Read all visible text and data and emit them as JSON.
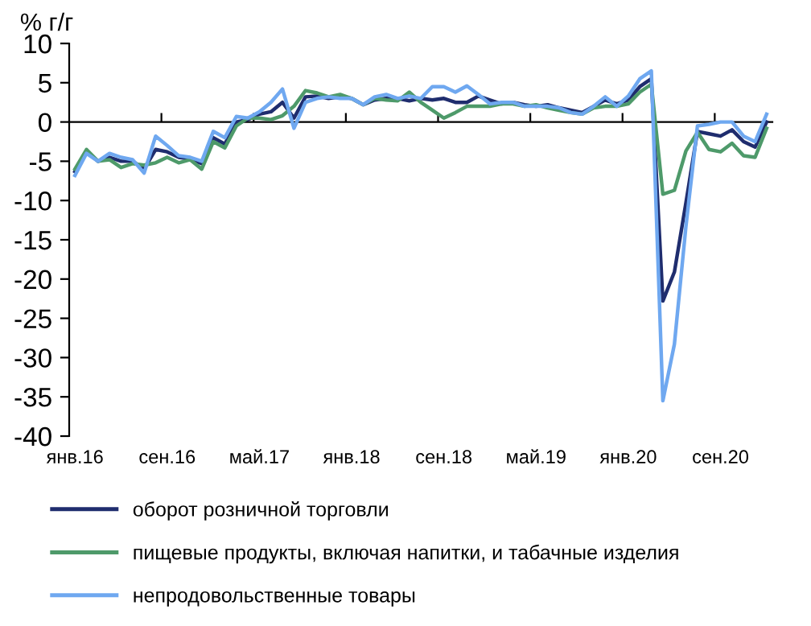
{
  "chart_data": {
    "type": "line",
    "ylabel": "% г/г",
    "categories": [
      "янв.16",
      null,
      null,
      null,
      null,
      null,
      null,
      null,
      "сен.16",
      null,
      null,
      null,
      null,
      null,
      null,
      null,
      "май.17",
      null,
      null,
      null,
      null,
      null,
      null,
      null,
      "янв.18",
      null,
      null,
      null,
      null,
      null,
      null,
      null,
      "сен.18",
      null,
      null,
      null,
      null,
      null,
      null,
      null,
      "май.19",
      null,
      null,
      null,
      null,
      null,
      null,
      null,
      "янв.20",
      null,
      null,
      null,
      null,
      null,
      null,
      null,
      "сен.20",
      null,
      null,
      null,
      null
    ],
    "series": [
      {
        "name": "оборот розничной торговли",
        "color": "#1f2d6e",
        "values": [
          -6.3,
          -3.8,
          -5.0,
          -4.5,
          -5.0,
          -5.0,
          -6.0,
          -3.5,
          -3.8,
          -4.5,
          -4.7,
          -5.3,
          -2.0,
          -2.8,
          0,
          0.3,
          1.0,
          1.3,
          2.5,
          0.5,
          3.2,
          3.3,
          3.0,
          3.2,
          3.0,
          2.2,
          2.8,
          3.0,
          3.0,
          2.7,
          3.0,
          2.8,
          3.0,
          2.5,
          2.5,
          3.3,
          2.8,
          2.3,
          2.5,
          2.2,
          2.0,
          2.2,
          1.8,
          1.5,
          1.2,
          2.0,
          2.8,
          2.3,
          2.8,
          4.5,
          5.5,
          -22.8,
          -19.1,
          -10.3,
          -1.2,
          -1.5,
          -1.8,
          -1.0,
          -2.5,
          -3.2,
          0
        ]
      },
      {
        "name": "пищевые продукты, включая напитки, и табачные изделия",
        "color": "#4e9a6a",
        "values": [
          -6.0,
          -3.5,
          -5.0,
          -4.8,
          -5.8,
          -5.3,
          -5.5,
          -5.2,
          -4.5,
          -5.2,
          -4.8,
          -6.0,
          -2.5,
          -3.3,
          -0.5,
          0.5,
          0.5,
          0.3,
          0.8,
          2.0,
          4.0,
          3.7,
          3.2,
          3.5,
          3.0,
          2.2,
          3.0,
          2.8,
          2.7,
          3.8,
          2.5,
          1.5,
          0.5,
          1.2,
          2.0,
          2.0,
          2.0,
          2.3,
          2.3,
          2.0,
          2.2,
          1.8,
          1.5,
          1.2,
          1.0,
          1.8,
          2.0,
          2.0,
          2.3,
          3.8,
          4.8,
          -9.2,
          -8.7,
          -3.7,
          -1.3,
          -3.5,
          -3.8,
          -2.7,
          -4.3,
          -4.5,
          -0.8
        ]
      },
      {
        "name": "непродовольственные товары",
        "color": "#6fa8f0",
        "values": [
          -6.8,
          -4.0,
          -5.0,
          -4.0,
          -4.5,
          -4.8,
          -6.5,
          -1.8,
          -3.0,
          -4.3,
          -4.5,
          -5.0,
          -1.2,
          -2.0,
          0.7,
          0.5,
          1.3,
          2.5,
          4.2,
          -0.8,
          2.5,
          3.0,
          3.2,
          3.0,
          3.0,
          2.2,
          3.2,
          3.5,
          3.0,
          3.3,
          3.0,
          4.5,
          4.5,
          3.8,
          4.6,
          3.5,
          2.3,
          2.5,
          2.5,
          2.0,
          2.0,
          2.0,
          1.8,
          1.2,
          1.0,
          2.0,
          3.2,
          2.0,
          3.3,
          5.5,
          6.5,
          -35.5,
          -28.3,
          -13.3,
          -0.5,
          -0.3,
          0,
          0,
          -1.8,
          -2.5,
          1.0
        ]
      }
    ],
    "ylim": [
      -40,
      10
    ],
    "yticks": [
      -40,
      -35,
      -30,
      -25,
      -20,
      -15,
      -10,
      -5,
      0,
      5,
      10
    ],
    "legend": "bottom",
    "marker": "none",
    "line_style": "solid"
  }
}
